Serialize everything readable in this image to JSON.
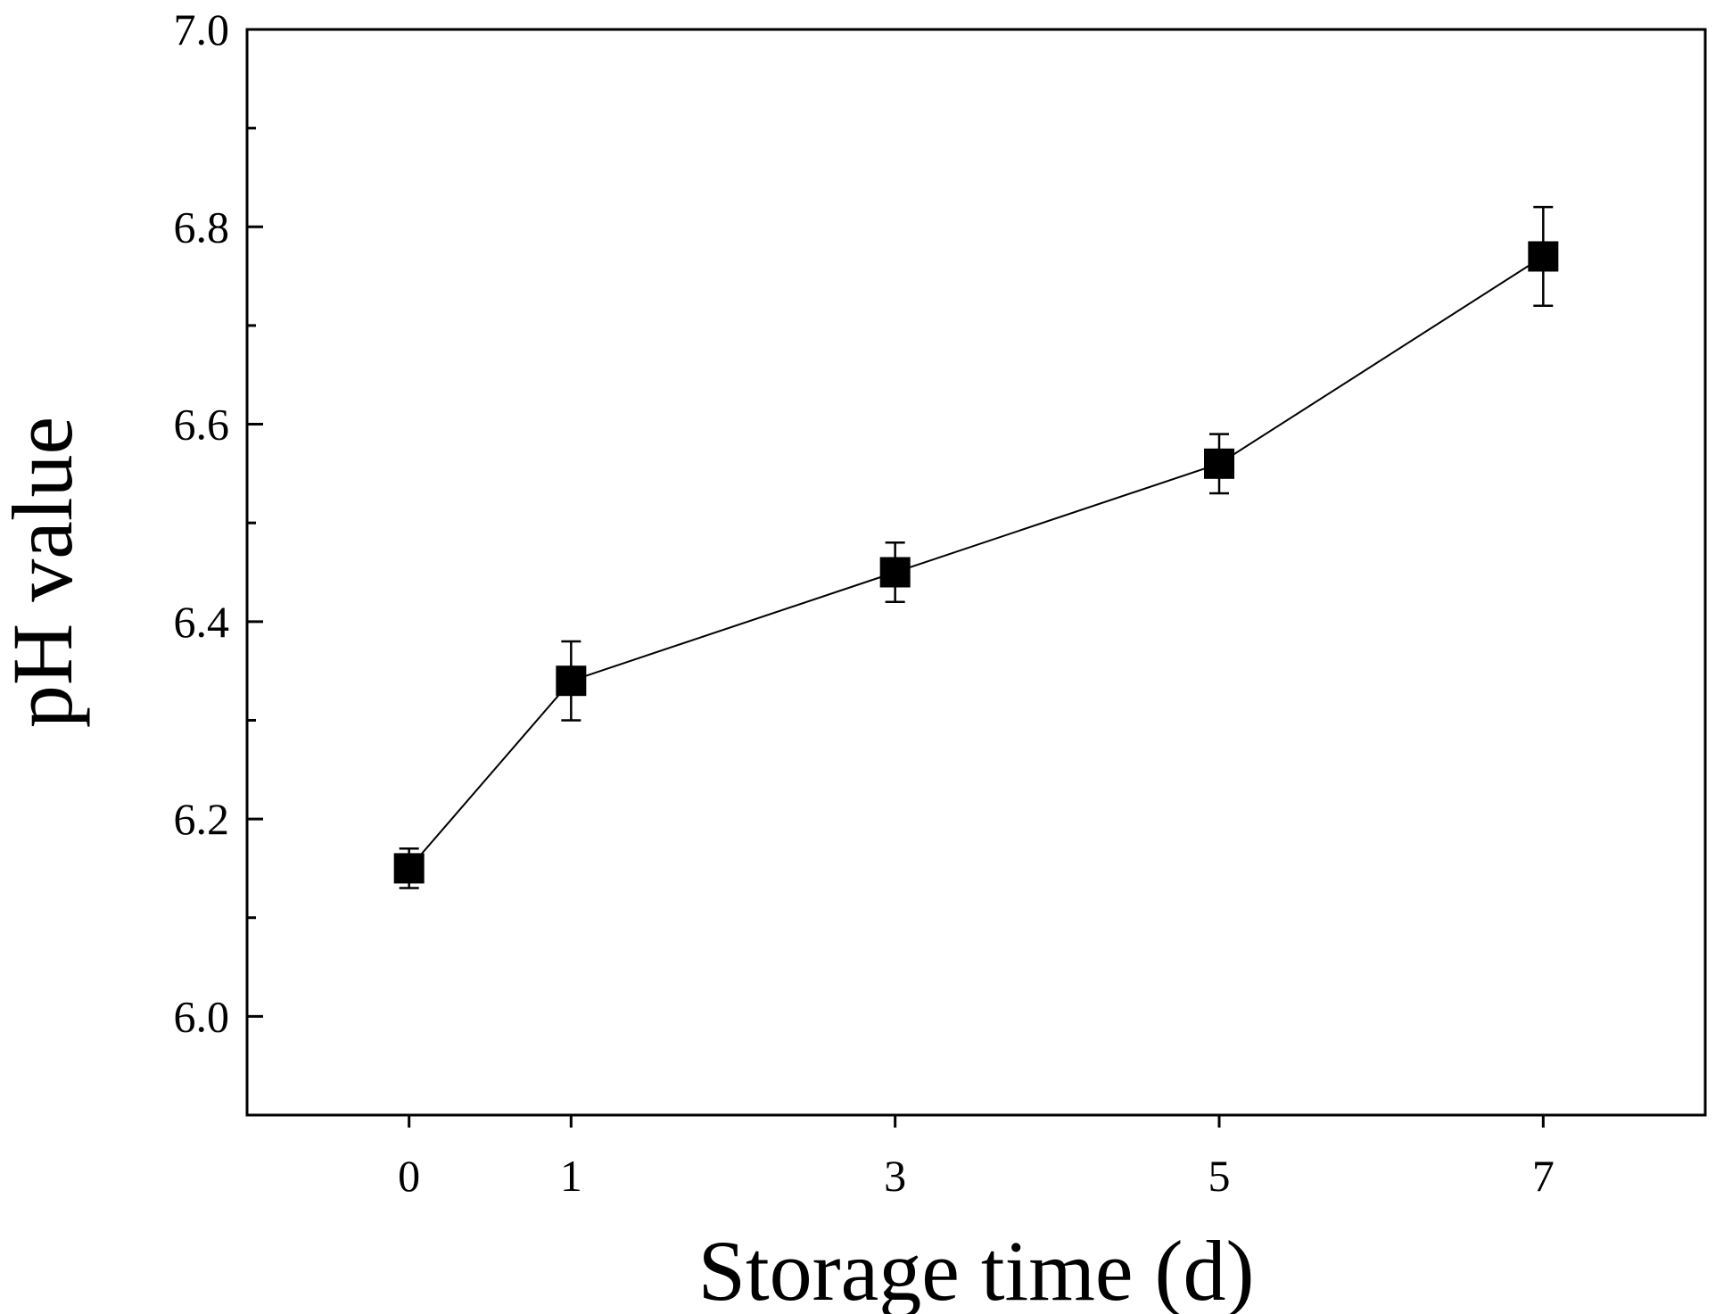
{
  "chart_data": {
    "type": "line",
    "title": "",
    "xlabel": "Storage time (d)",
    "ylabel": "pH value",
    "xlim": [
      -1,
      8
    ],
    "ylim": [
      5.9,
      7.0
    ],
    "x_ticks": [
      0,
      1,
      3,
      5,
      7
    ],
    "x_tick_labels": [
      "0",
      "1",
      "3",
      "5",
      "7"
    ],
    "y_major_ticks": [
      6.0,
      6.2,
      6.4,
      6.6,
      6.8,
      7.0
    ],
    "y_tick_labels": [
      "6.0",
      "6.2",
      "6.4",
      "6.6",
      "6.8",
      "7.0"
    ],
    "y_minor_ticks": [
      6.1,
      6.3,
      6.5,
      6.7,
      6.9
    ],
    "grid": false,
    "legend": "none",
    "series": [
      {
        "marker": "filled-square",
        "color": "#000000",
        "x": [
          0,
          1,
          3,
          5,
          7
        ],
        "y": [
          6.15,
          6.34,
          6.45,
          6.56,
          6.77
        ],
        "error": [
          0.02,
          0.04,
          0.03,
          0.03,
          0.05
        ]
      }
    ]
  }
}
